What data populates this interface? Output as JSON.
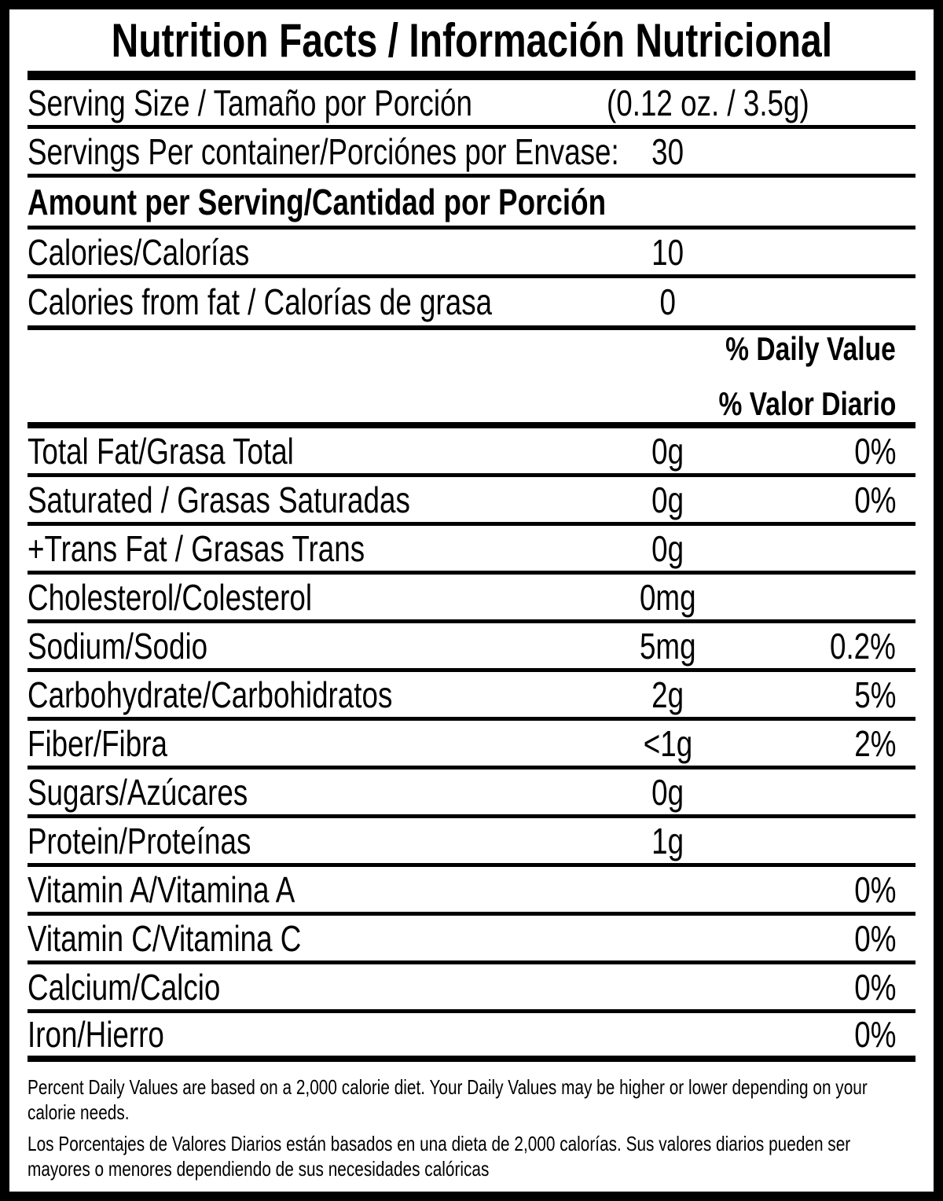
{
  "colors": {
    "text": "#000000",
    "background": "#ffffff",
    "rule": "#000000"
  },
  "title": "Nutrition Facts / Información Nutricional",
  "serving_size": {
    "label": "Serving Size / Tamaño por Porción",
    "value": "(0.12 oz. / 3.5g)"
  },
  "servings_per_container": {
    "label": "Servings Per container/Porciónes por Envase:",
    "value": "30"
  },
  "amount_per_serving_header": "Amount per Serving/Cantidad por Porción",
  "calorie_rows": [
    {
      "label": "Calories/Calorías",
      "amount": "10"
    },
    {
      "label": "Calories from fat / Calorías de grasa",
      "amount": "0"
    }
  ],
  "daily_value_header": {
    "line1": "% Daily Value",
    "line2": "% Valor Diario"
  },
  "nutrient_rows": [
    {
      "label": "Total Fat/Grasa Total",
      "amount": "0g",
      "percent": "0%"
    },
    {
      "label": "Saturated / Grasas Saturadas",
      "amount": "0g",
      "percent": "0%"
    },
    {
      "label": "+Trans Fat / Grasas Trans",
      "amount": "0g",
      "percent": ""
    },
    {
      "label": "Cholesterol/Colesterol",
      "amount": "0mg",
      "percent": ""
    },
    {
      "label": "Sodium/Sodio",
      "amount": "5mg",
      "percent": "0.2%"
    },
    {
      "label": "Carbohydrate/Carbohidratos",
      "amount": "2g",
      "percent": "5%"
    },
    {
      "label": "Fiber/Fibra",
      "amount": "<1g",
      "percent": "2%"
    },
    {
      "label": "Sugars/Azúcares",
      "amount": "0g",
      "percent": ""
    },
    {
      "label": "Protein/Proteínas",
      "amount": "1g",
      "percent": ""
    },
    {
      "label": "Vitamin A/Vitamina A",
      "amount": "",
      "percent": "0%"
    },
    {
      "label": "Vitamin C/Vitamina C",
      "amount": "",
      "percent": "0%"
    },
    {
      "label": "Calcium/Calcio",
      "amount": "",
      "percent": "0%"
    },
    {
      "label": "Iron/Hierro",
      "amount": "",
      "percent": "0%"
    }
  ],
  "footnote": {
    "en": "Percent Daily Values are based on a 2,000 calorie diet. Your Daily Values may be higher or lower depending on your calorie needs.",
    "es": "Los Porcentajes de Valores Diarios están basados en una dieta de 2,000 calorías. Sus valores diarios pueden ser mayores o menores dependiendo de sus necesidades calóricas"
  }
}
